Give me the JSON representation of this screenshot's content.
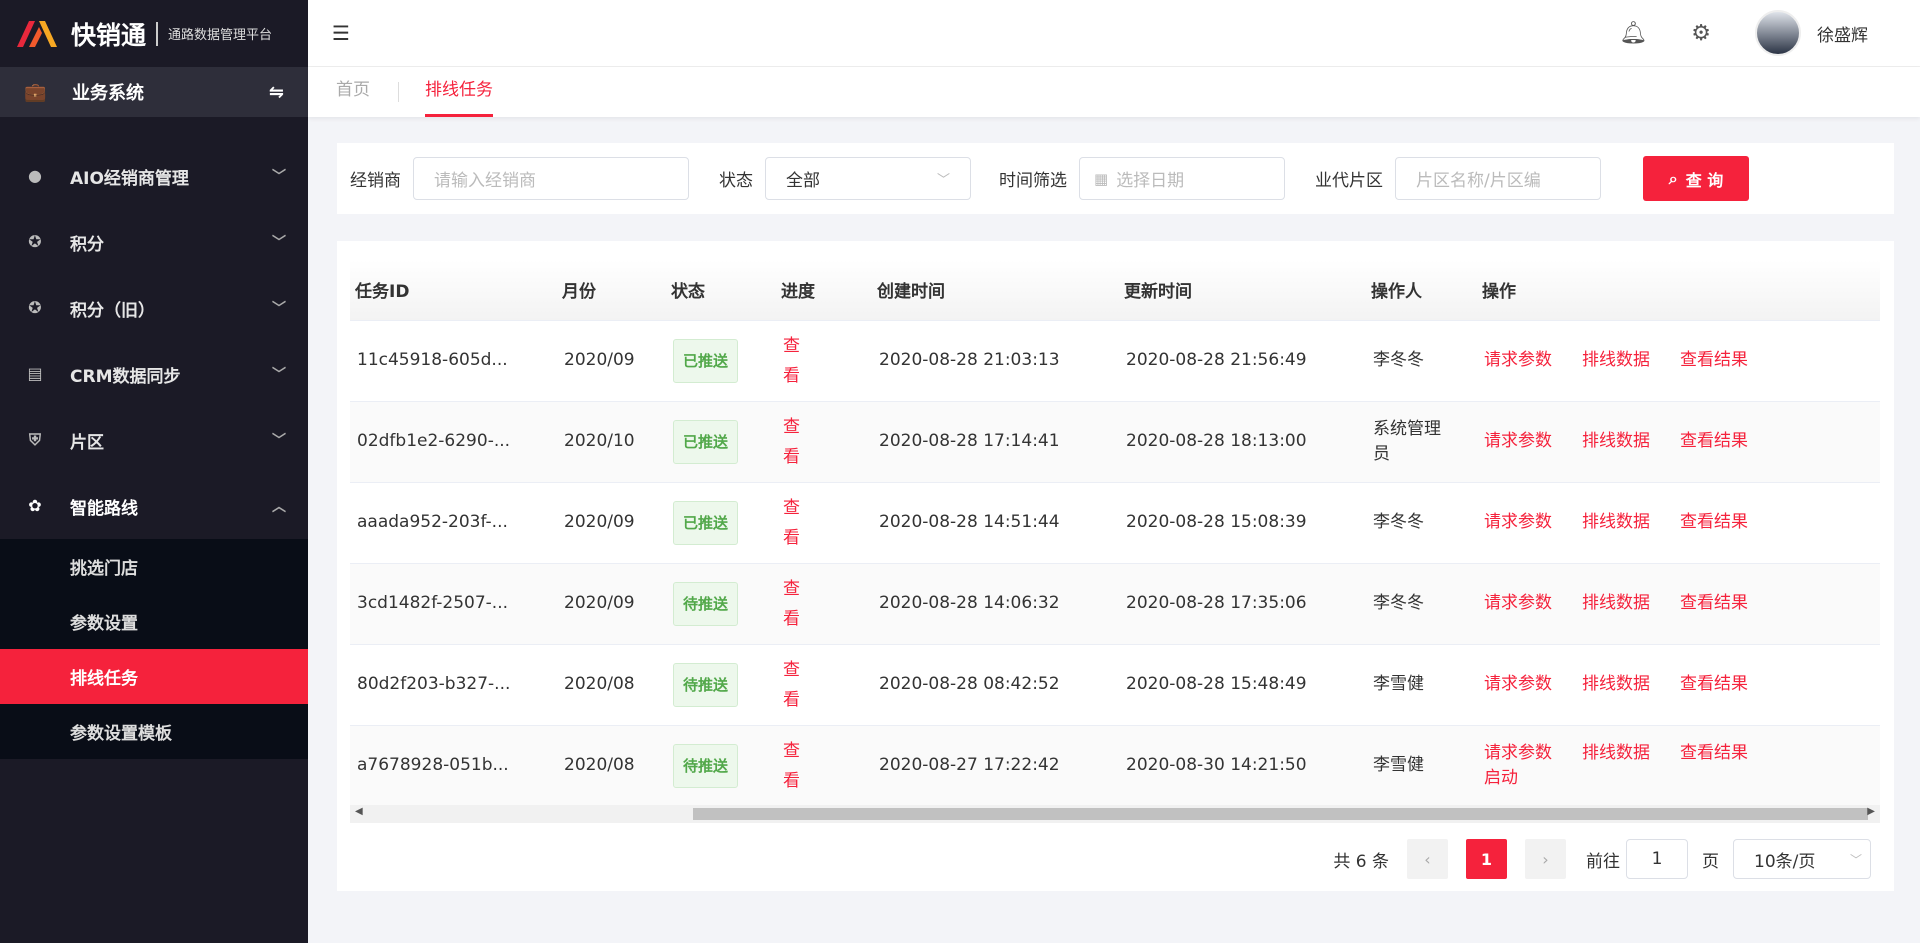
{
  "brand": {
    "name": "快销通",
    "subtitle": "通路数据管理平台"
  },
  "system": {
    "label": "业务系统"
  },
  "menu": [
    {
      "label": "AIO经销商管理",
      "icon": "user-icon"
    },
    {
      "label": "积分",
      "icon": "medal-icon"
    },
    {
      "label": "积分（旧）",
      "icon": "medal-icon"
    },
    {
      "label": "CRM数据同步",
      "icon": "clipboard-icon"
    },
    {
      "label": "片区",
      "icon": "shield-icon"
    },
    {
      "label": "智能路线",
      "icon": "route-icon"
    }
  ],
  "submenu": [
    "挑选门店",
    "参数设置",
    "排线任务",
    "参数设置模板"
  ],
  "user": {
    "name": "徐盛辉"
  },
  "tabs": [
    "首页",
    "排线任务"
  ],
  "filter": {
    "dealer_label": "经销商",
    "dealer_placeholder": "请输入经销商",
    "status_label": "状态",
    "status_value": "全部",
    "time_label": "时间筛选",
    "time_placeholder": "选择日期",
    "area_label": "业代片区",
    "area_placeholder": "片区名称/片区编",
    "query": "查 询"
  },
  "table": {
    "headers": [
      "任务ID",
      "月份",
      "状态",
      "进度",
      "创建时间",
      "更新时间",
      "操作人",
      "操作"
    ],
    "progress_link": "查看",
    "actions": [
      "请求参数",
      "排线数据",
      "查看结果"
    ],
    "rows": [
      {
        "id": "11c45918-605d...",
        "month": "2020/09",
        "status": "已推送",
        "created": "2020-08-28 21:03:13",
        "updated": "2020-08-28 21:56:49",
        "operator": "李冬冬",
        "extra": ""
      },
      {
        "id": "02dfb1e2-6290-...",
        "month": "2020/10",
        "status": "已推送",
        "created": "2020-08-28 17:14:41",
        "updated": "2020-08-28 18:13:00",
        "operator": "系统管理员",
        "extra": ""
      },
      {
        "id": "aaada952-203f-...",
        "month": "2020/09",
        "status": "已推送",
        "created": "2020-08-28 14:51:44",
        "updated": "2020-08-28 15:08:39",
        "operator": "李冬冬",
        "extra": ""
      },
      {
        "id": "3cd1482f-2507-...",
        "month": "2020/09",
        "status": "待推送",
        "created": "2020-08-28 14:06:32",
        "updated": "2020-08-28 17:35:06",
        "operator": "李冬冬",
        "extra": ""
      },
      {
        "id": "80d2f203-b327-...",
        "month": "2020/08",
        "status": "待推送",
        "created": "2020-08-28 08:42:52",
        "updated": "2020-08-28 15:48:49",
        "operator": "李雪健",
        "extra": ""
      },
      {
        "id": "a7678928-051b...",
        "month": "2020/08",
        "status": "待推送",
        "created": "2020-08-27 17:22:42",
        "updated": "2020-08-30 14:21:50",
        "operator": "李雪健",
        "extra": "启动"
      }
    ]
  },
  "pagination": {
    "total": "共 6 条",
    "current": "1",
    "goto_label": "前往",
    "goto_value": "1",
    "page_unit": "页",
    "page_size": "10条/页"
  },
  "colors": {
    "accent": "#f5223c",
    "sidebar": "#1b1a26"
  }
}
